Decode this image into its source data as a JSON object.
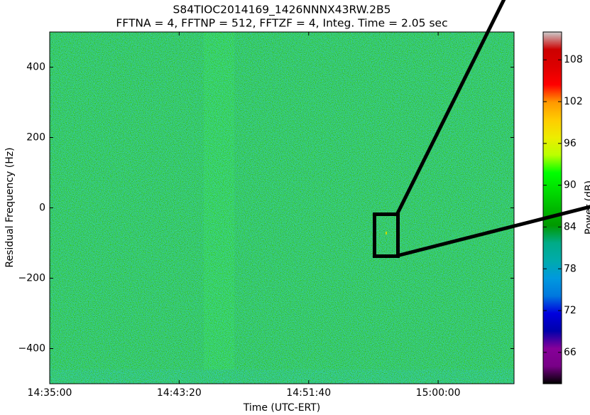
{
  "chart_data": {
    "type": "spectrogram",
    "title": "S84TIOC2014169_1426NNNX43RW.2B5",
    "subtitle": "FFTNA = 4, FFTNP = 512, FFTZF = 4, Integ. Time = 2.05 sec",
    "x_label": "Time (UTC-ERT)",
    "y_label": "Residual Frequency (Hz)",
    "colorbar_label": "Power (dB)",
    "colormap": "nipy_spectral",
    "xlim": [
      "14:35:00",
      "15:04:53"
    ],
    "xticks": [
      "14:35:00",
      "14:43:20",
      "14:51:40",
      "15:00:00"
    ],
    "ylim": [
      -500,
      500
    ],
    "yticks": [
      -400,
      -200,
      0,
      200,
      400
    ],
    "clim": [
      61.5,
      112
    ],
    "cticks": [
      66,
      72,
      78,
      84,
      90,
      96,
      102,
      108
    ]
  }
}
